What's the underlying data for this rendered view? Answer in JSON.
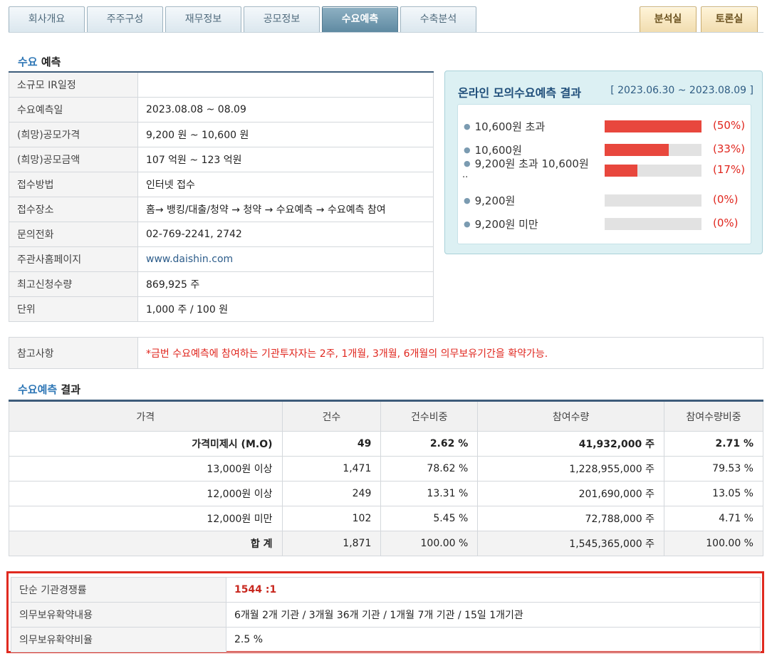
{
  "tabs": [
    "회사개요",
    "주주구성",
    "재무정보",
    "공모정보",
    "수요예측",
    "수축분석"
  ],
  "active_tab": "수요예측",
  "rooms": [
    "분석실",
    "토론실"
  ],
  "section1": {
    "hl": "수요",
    "rest": " 예측"
  },
  "info_rows": [
    {
      "label": "소규모 IR일정",
      "value": ""
    },
    {
      "label": "수요예측일",
      "value": "2023.08.08 ~ 08.09"
    },
    {
      "label": "(희망)공모가격",
      "value": "9,200 원 ~ 10,600 원"
    },
    {
      "label": "(희망)공모금액",
      "value": "107 억원 ~ 123 억원"
    },
    {
      "label": "접수방법",
      "value": "인터넷 접수"
    },
    {
      "label": "접수장소",
      "value": "홈→ 뱅킹/대출/청약 → 청약 → 수요예측 → 수요예측 참여"
    },
    {
      "label": "문의전화",
      "value": "02-769-2241, 2742"
    },
    {
      "label": "주관사홈페이지",
      "value": "www.daishin.com"
    },
    {
      "label": "최고신청수량",
      "value": "869,925 주"
    },
    {
      "label": "단위",
      "value": "1,000 주 / 100 원"
    }
  ],
  "note": {
    "label": "참고사항",
    "value": "*금번 수요예측에 참여하는 기관투자자는 2주, 1개월, 3개월, 6개월의 의무보유기간을 확약가능."
  },
  "online": {
    "title": "온라인 모의수요예측 결과",
    "period": "[ 2023.06.30 ~ 2023.08.09 ]",
    "rows": [
      {
        "label": "10,600원 초과",
        "pct": "(50%)",
        "value": 50
      },
      {
        "label": "10,600원",
        "pct": "(33%)",
        "value": 33
      },
      {
        "label": "9,200원 초과 10,600원",
        "label2": "..",
        "pct": "(17%)",
        "value": 17
      },
      {
        "label": "9,200원",
        "pct": "(0%)",
        "value": 0
      },
      {
        "label": "9,200원 미만",
        "pct": "(0%)",
        "value": 0
      }
    ],
    "colors": {
      "fill": "#e8473d",
      "track": "#e2e2e2"
    }
  },
  "section2": {
    "hl": "수요예측",
    "rest": " 결과"
  },
  "result": {
    "headers": [
      "가격",
      "건수",
      "건수비중",
      "참여수량",
      "참여수량비중"
    ],
    "rows": [
      [
        "가격미제시 (M.O)",
        "49",
        "2.62 %",
        "41,932,000 주",
        "2.71 %"
      ],
      [
        "13,000원 이상",
        "1,471",
        "78.62 %",
        "1,228,955,000 주",
        "79.53 %"
      ],
      [
        "12,000원 이상",
        "249",
        "13.31 %",
        "201,690,000 주",
        "13.05 %"
      ],
      [
        "12,000원 미만",
        "102",
        "5.45 %",
        "72,788,000 주",
        "4.71 %"
      ],
      [
        "합 계",
        "1,871",
        "100.00 %",
        "1,545,365,000 주",
        "100.00 %"
      ]
    ]
  },
  "compete": [
    {
      "label": "단순 기관경쟁률",
      "value": "1544 :1"
    },
    {
      "label": "의무보유확약내용",
      "value": "6개월 2개 기관 / 3개월 36개 기관 / 1개월 7개 기관 / 15일 1개기관"
    },
    {
      "label": "의무보유확약비율",
      "value": "2.5 %"
    }
  ]
}
